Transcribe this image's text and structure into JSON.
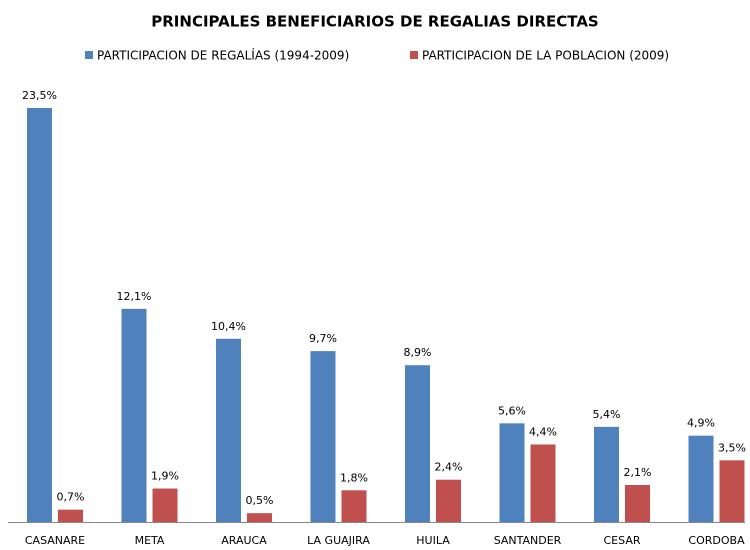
{
  "chart_data": {
    "type": "bar",
    "title": "PRINCIPALES BENEFICIARIOS DE REGALIAS DIRECTAS",
    "categories": [
      "CASANARE",
      "META",
      "ARAUCA",
      "LA GUAJIRA",
      "HUILA",
      "SANTANDER",
      "CESAR",
      "CORDOBA"
    ],
    "series": [
      {
        "name": "PARTICIPACION DE REGALÍAS (1994-2009)",
        "color": "#4f81bd",
        "values": [
          23.5,
          12.1,
          10.4,
          9.7,
          8.9,
          5.6,
          5.4,
          4.9
        ],
        "value_labels": [
          "23,5%",
          "12,1%",
          "10,4%",
          "9,7%",
          "8,9%",
          "5,6%",
          "5,4%",
          "4,9%"
        ]
      },
      {
        "name": "PARTICIPACION DE LA POBLACION (2009)",
        "color": "#c0504d",
        "values": [
          0.7,
          1.9,
          0.5,
          1.8,
          2.4,
          4.4,
          2.1,
          3.5
        ],
        "value_labels": [
          "0,7%",
          "1,9%",
          "0,5%",
          "1,8%",
          "2,4%",
          "4,4%",
          "2,1%",
          "3,5%"
        ]
      }
    ]
  }
}
